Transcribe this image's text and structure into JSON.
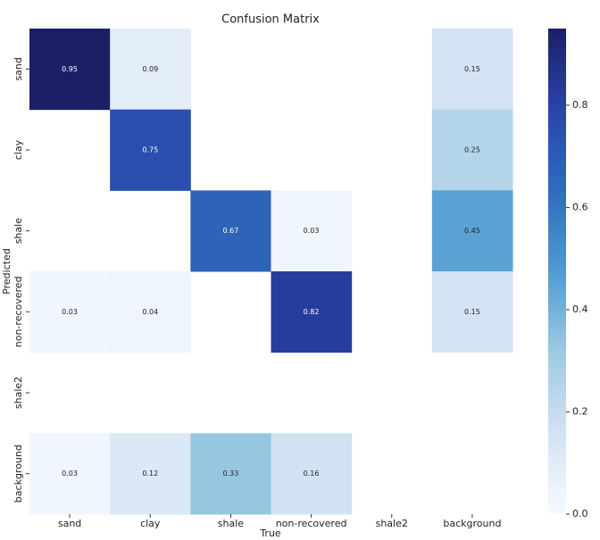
{
  "chart_data": {
    "type": "heatmap",
    "title": "Confusion Matrix",
    "x_label": "True",
    "y_label": "Predicted",
    "columns": [
      "sand",
      "clay",
      "shale",
      "non-recovered",
      "shale2",
      "background"
    ],
    "rows": [
      "sand",
      "clay",
      "shale",
      "non-recovered",
      "shale2",
      "background"
    ],
    "values": [
      [
        0.95,
        0.09,
        null,
        null,
        null,
        0.15
      ],
      [
        null,
        0.75,
        null,
        null,
        null,
        0.25
      ],
      [
        null,
        null,
        0.67,
        0.03,
        null,
        0.45
      ],
      [
        0.03,
        0.04,
        null,
        0.82,
        null,
        0.15
      ],
      [
        null,
        null,
        null,
        null,
        null,
        null
      ],
      [
        0.03,
        0.12,
        0.33,
        0.16,
        null,
        null
      ]
    ],
    "colors": [
      "#f7fbff",
      "#d2e2f3",
      "#9ecae1",
      "#4f9bd2",
      "#2e6cbd",
      "#2a44aa",
      "#1c1f66"
    ],
    "zlim": [
      0,
      0.95
    ],
    "zticks": [
      {
        "value": 0,
        "label": "0.0"
      },
      0.2,
      0.4,
      0.6,
      0.8
    ]
  }
}
